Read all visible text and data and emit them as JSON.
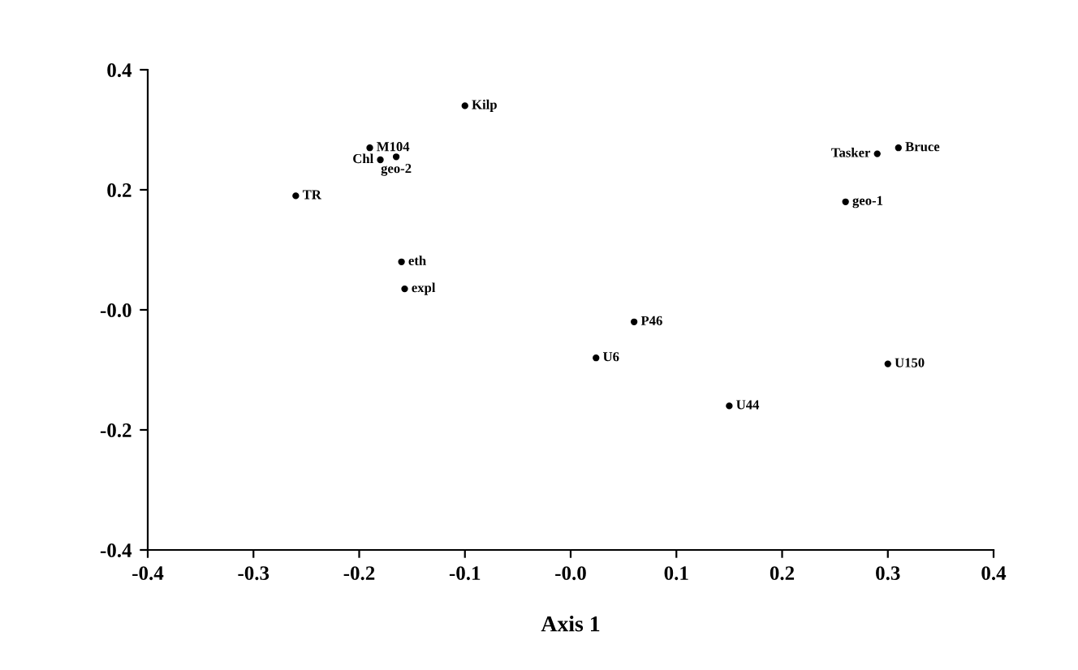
{
  "chart_data": {
    "type": "scatter",
    "xlabel": "Axis 1",
    "marker": "circle",
    "grid": false,
    "legend": false,
    "x": [
      -0.1,
      -0.19,
      -0.18,
      -0.165,
      -0.26,
      -0.16,
      -0.157,
      0.06,
      0.024,
      0.15,
      0.3,
      0.31,
      0.29,
      0.26
    ],
    "values": [
      0.34,
      0.27,
      0.25,
      0.255,
      0.19,
      0.08,
      0.035,
      -0.02,
      -0.08,
      -0.16,
      -0.09,
      0.27,
      0.26,
      0.18
    ],
    "value_labels": [
      "Kilp",
      "M104",
      "Chl",
      "geo-2",
      "TR",
      "eth",
      "expl",
      "P46",
      "U6",
      "U44",
      "U150",
      "Bruce",
      "Tasker",
      "geo-1"
    ],
    "color": "#000000",
    "xlim": [
      -0.4,
      0.4
    ],
    "ylim": [
      -0.4,
      0.4
    ],
    "xticks": [
      -0.4,
      -0.3,
      -0.2,
      -0.1,
      {
        "value": 0,
        "label": "-0.0"
      },
      0.1,
      0.2,
      0.3,
      0.4
    ],
    "yticks": [
      -0.4,
      -0.2,
      {
        "value": 0,
        "label": "-0.0"
      },
      0.2,
      0.4
    ]
  }
}
